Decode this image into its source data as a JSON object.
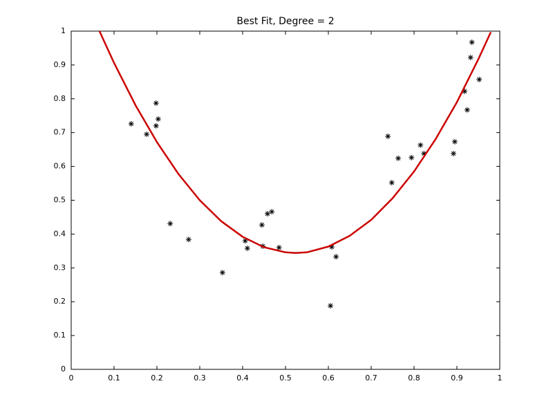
{
  "chart_data": {
    "type": "scatter",
    "title": "Best Fit, Degree = 2",
    "xlim": [
      0,
      1
    ],
    "ylim": [
      0,
      1
    ],
    "xticks": [
      0,
      0.1,
      0.2,
      0.3,
      0.4,
      0.5,
      0.6,
      0.7,
      0.8,
      0.9,
      1
    ],
    "yticks": [
      0,
      0.1,
      0.2,
      0.3,
      0.4,
      0.5,
      0.6,
      0.7,
      0.8,
      0.9,
      1
    ],
    "series": [
      {
        "type": "scatter",
        "marker": "*",
        "color": "#000000",
        "x": [
          0.14,
          0.176,
          0.198,
          0.203,
          0.198,
          0.231,
          0.274,
          0.353,
          0.406,
          0.411,
          0.445,
          0.447,
          0.458,
          0.468,
          0.485,
          0.605,
          0.608,
          0.618,
          0.739,
          0.748,
          0.763,
          0.794,
          0.815,
          0.823,
          0.892,
          0.895,
          0.918,
          0.924,
          0.932,
          0.935,
          0.952
        ],
        "values": [
          0.726,
          0.695,
          0.787,
          0.74,
          0.72,
          0.431,
          0.384,
          0.286,
          0.38,
          0.358,
          0.427,
          0.364,
          0.46,
          0.466,
          0.36,
          0.188,
          0.362,
          0.333,
          0.689,
          0.552,
          0.624,
          0.626,
          0.663,
          0.638,
          0.638,
          0.673,
          0.822,
          0.767,
          0.922,
          0.967,
          0.857
        ]
      },
      {
        "type": "line",
        "color": "#cc0000",
        "x": [
          0.066,
          0.1,
          0.15,
          0.2,
          0.25,
          0.3,
          0.35,
          0.4,
          0.45,
          0.5,
          0.523,
          0.55,
          0.6,
          0.65,
          0.7,
          0.75,
          0.8,
          0.85,
          0.9,
          0.95,
          0.979
        ],
        "values": [
          1.0,
          0.906,
          0.781,
          0.672,
          0.578,
          0.5,
          0.438,
          0.392,
          0.361,
          0.346,
          0.344,
          0.346,
          0.363,
          0.395,
          0.442,
          0.506,
          0.585,
          0.68,
          0.79,
          0.917,
          0.997
        ]
      }
    ]
  }
}
